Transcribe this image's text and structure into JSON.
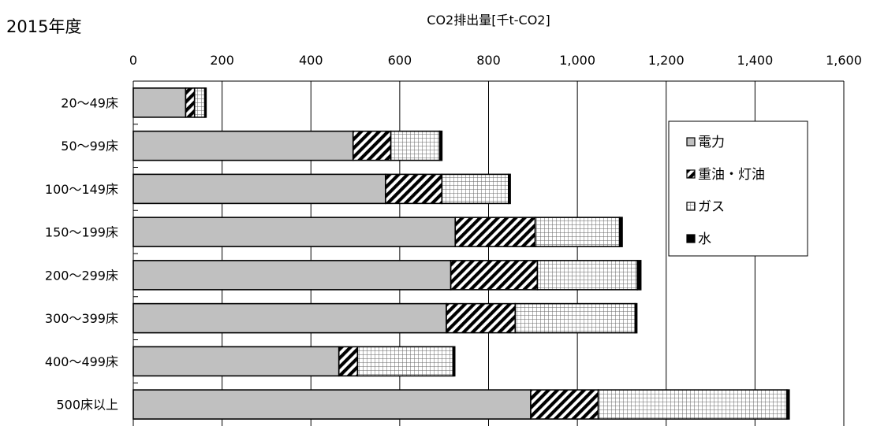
{
  "chart_data": {
    "type": "bar",
    "orientation": "horizontal",
    "stacked": true,
    "title": "2015年度",
    "xlabel": "CO2排出量[千t-CO2]",
    "ylabel": "",
    "xlim": [
      0,
      1600
    ],
    "xticks": [
      0,
      200,
      400,
      600,
      800,
      1000,
      1200,
      1400,
      1600
    ],
    "xtick_labels": [
      "0",
      "200",
      "400",
      "600",
      "800",
      "1,000",
      "1,200",
      "1,400",
      "1,600"
    ],
    "categories": [
      "20～49床",
      "50～99床",
      "100～149床",
      "150～199床",
      "200～299床",
      "300～399床",
      "400～499床",
      "500床以上"
    ],
    "series": [
      {
        "name": "電力",
        "pattern": "solid-gray",
        "color": "#c0c0c0",
        "values": [
          118,
          495,
          568,
          725,
          715,
          705,
          463,
          895
        ]
      },
      {
        "name": "重油・灯油",
        "pattern": "diagonal-hatch",
        "color": "#000000",
        "values": [
          20,
          85,
          127,
          180,
          195,
          155,
          42,
          152
        ]
      },
      {
        "name": "ガス",
        "pattern": "grid-hatch",
        "color": "#000000",
        "values": [
          23,
          110,
          150,
          190,
          225,
          270,
          215,
          425
        ]
      },
      {
        "name": "水",
        "pattern": "solid-black",
        "color": "#000000",
        "values": [
          3,
          5,
          4,
          6,
          8,
          4,
          4,
          5
        ]
      }
    ],
    "grid": true,
    "legend_position": "right"
  }
}
